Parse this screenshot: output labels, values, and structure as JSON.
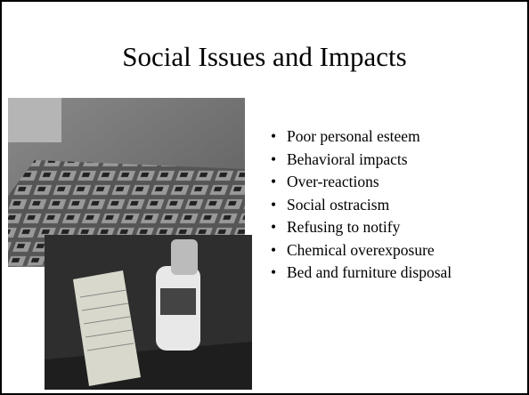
{
  "slide": {
    "title": "Social Issues and Impacts",
    "bullets": [
      "Poor personal esteem",
      "Behavioral impacts",
      "Over-reactions",
      "Social ostracism",
      "Refusing to notify",
      "Chemical overexposure",
      "Bed and furniture disposal"
    ]
  }
}
